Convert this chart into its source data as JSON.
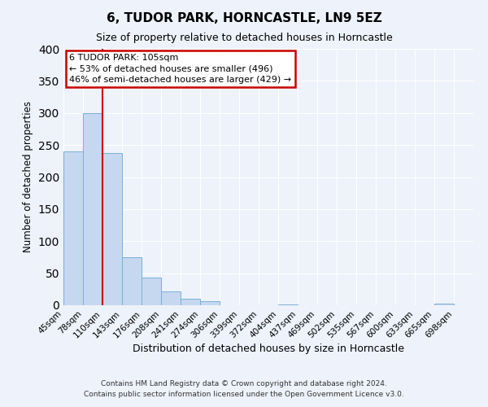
{
  "title": "6, TUDOR PARK, HORNCASTLE, LN9 5EZ",
  "subtitle": "Size of property relative to detached houses in Horncastle",
  "xlabel": "Distribution of detached houses by size in Horncastle",
  "ylabel": "Number of detached properties",
  "bar_edges": [
    45,
    78,
    110,
    143,
    176,
    208,
    241,
    274,
    306,
    339,
    372,
    404,
    437,
    469,
    502,
    535,
    567,
    600,
    633,
    665,
    698
  ],
  "bar_heights": [
    240,
    300,
    238,
    75,
    43,
    22,
    10,
    6,
    0,
    0,
    0,
    1,
    0,
    0,
    0,
    0,
    0,
    0,
    0,
    3
  ],
  "bar_color": "#c5d8f0",
  "bar_edgecolor": "#7ab0d8",
  "tick_labels": [
    "45sqm",
    "78sqm",
    "110sqm",
    "143sqm",
    "176sqm",
    "208sqm",
    "241sqm",
    "274sqm",
    "306sqm",
    "339sqm",
    "372sqm",
    "404sqm",
    "437sqm",
    "469sqm",
    "502sqm",
    "535sqm",
    "567sqm",
    "600sqm",
    "633sqm",
    "665sqm",
    "698sqm"
  ],
  "ylim": [
    0,
    400
  ],
  "yticks": [
    0,
    50,
    100,
    150,
    200,
    250,
    300,
    350,
    400
  ],
  "vline_x": 110,
  "vline_color": "#cc0000",
  "annotation_text": "6 TUDOR PARK: 105sqm\n← 53% of detached houses are smaller (496)\n46% of semi-detached houses are larger (429) →",
  "annotation_box_edgecolor": "#cc0000",
  "background_color": "#eef2fa",
  "grid_color": "#ffffff",
  "footer_line1": "Contains HM Land Registry data © Crown copyright and database right 2024.",
  "footer_line2": "Contains public sector information licensed under the Open Government Licence v3.0."
}
